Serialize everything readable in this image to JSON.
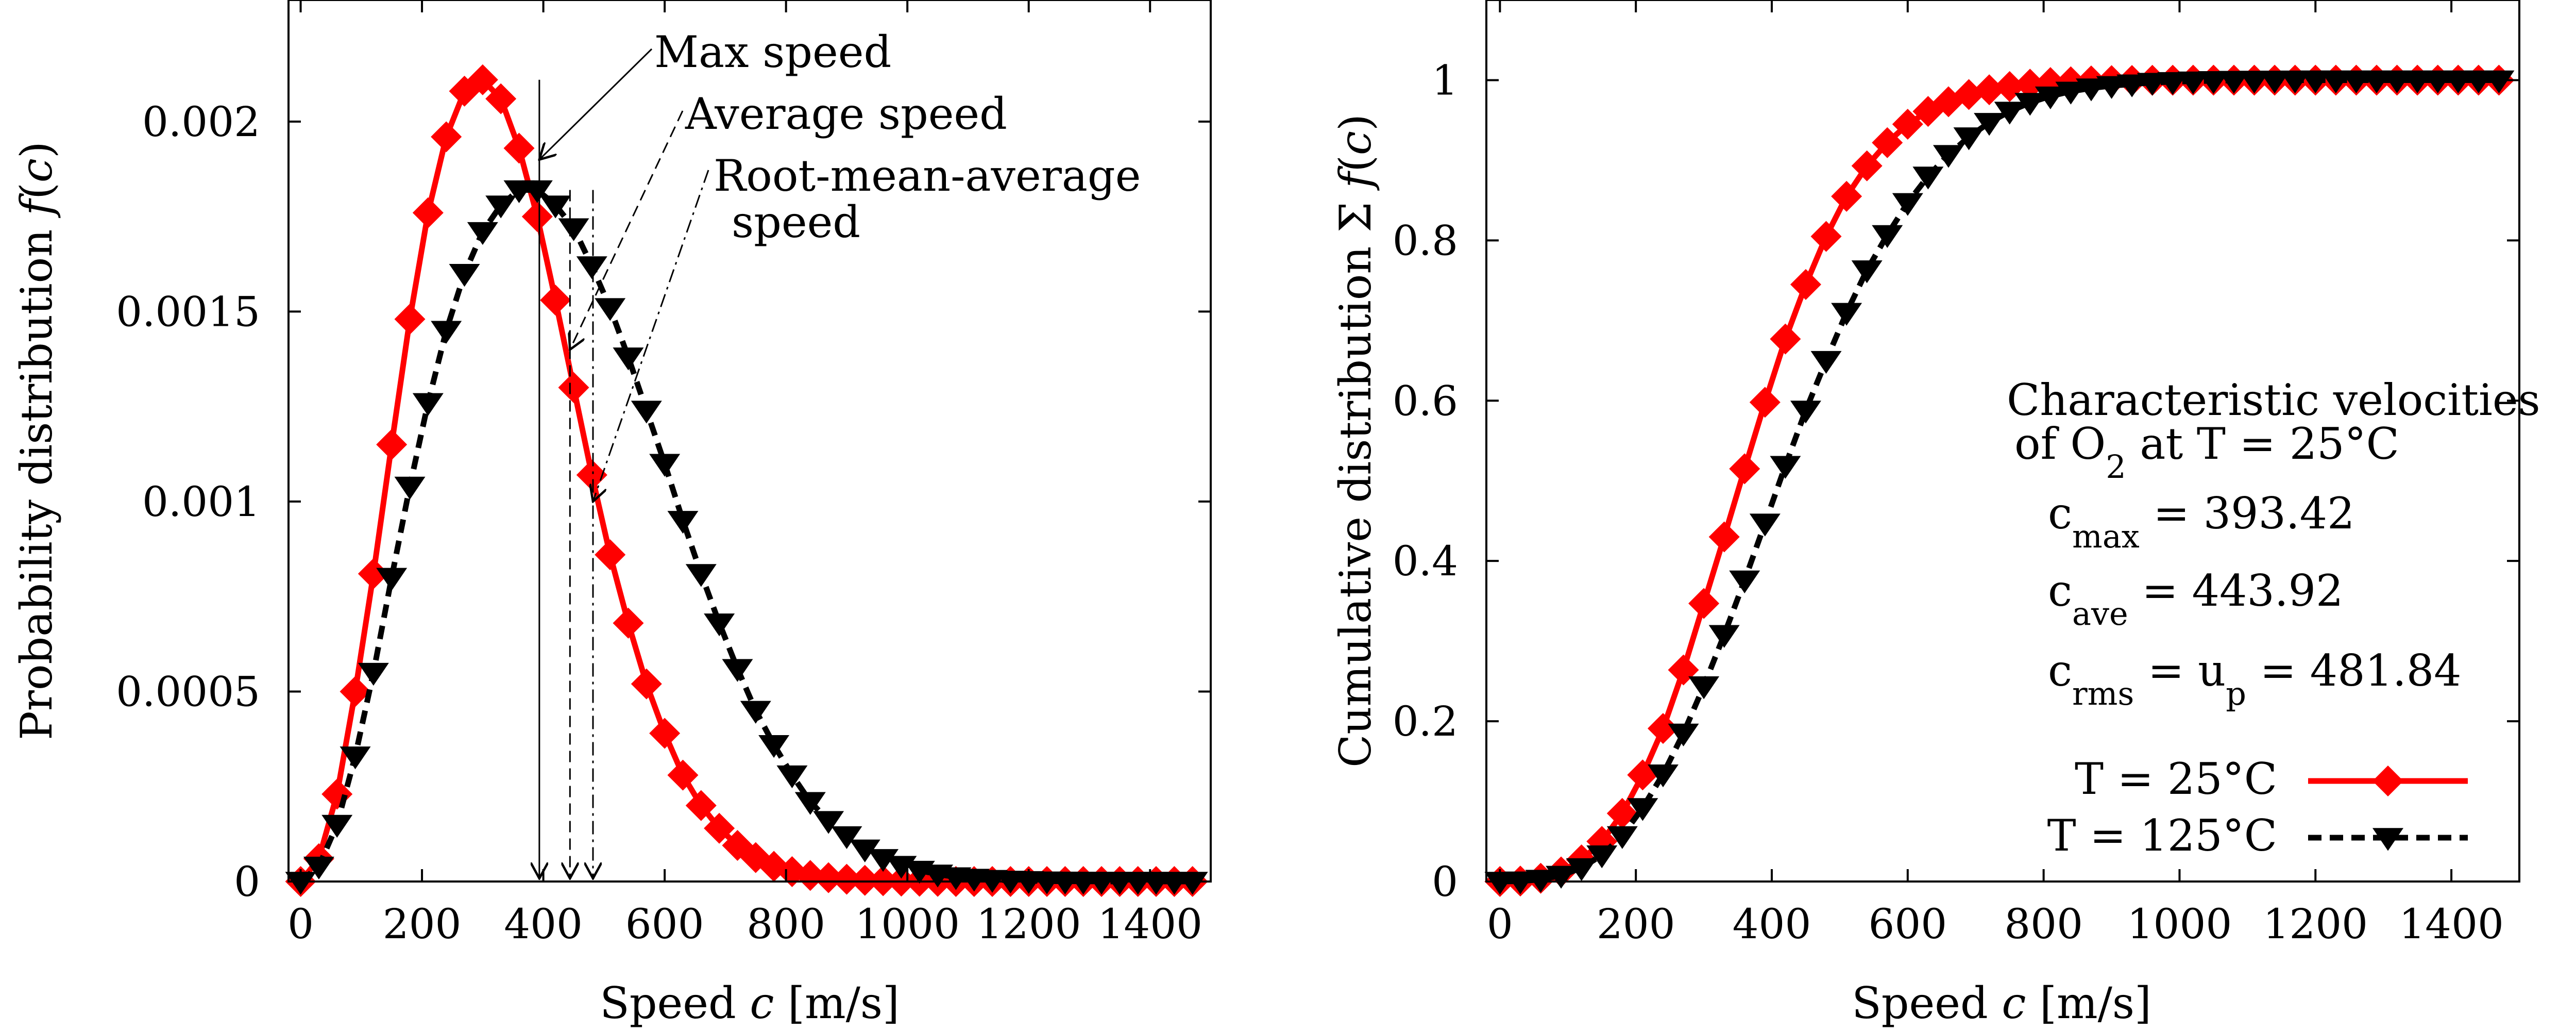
{
  "chart_data": [
    {
      "type": "line",
      "xlabel": "Speed",
      "xlabel_var": "c",
      "xlabel_unit": "[m/s]",
      "ylabel": "Probability distribution",
      "ylabel_func": "f",
      "ylabel_var": "c",
      "xlim": [
        -20,
        1500
      ],
      "ylim": [
        0,
        0.00232
      ],
      "xticks": [
        0,
        200,
        400,
        600,
        800,
        1000,
        1200,
        1400
      ],
      "xtick_labels": [
        "0",
        "200",
        "400",
        "600",
        "800",
        "1000",
        "1200",
        "1400"
      ],
      "yticks": [
        0,
        0.0005,
        0.001,
        0.0015,
        0.002
      ],
      "ytick_labels": [
        "0",
        "0.0005",
        "0.001",
        "0.0015",
        "0.002"
      ],
      "grid": false,
      "x": [
        0,
        30,
        60,
        90,
        120,
        150,
        180,
        210,
        240,
        270,
        300,
        330,
        360,
        390,
        420,
        450,
        480,
        510,
        540,
        570,
        600,
        630,
        660,
        690,
        720,
        750,
        780,
        810,
        840,
        870,
        900,
        930,
        960,
        990,
        1020,
        1050,
        1080,
        1110,
        1140,
        1170,
        1200,
        1230,
        1260,
        1290,
        1320,
        1350,
        1380,
        1410,
        1440,
        1470
      ],
      "series": [
        {
          "color": "#ff0000",
          "marker": "diamond",
          "line": "solid",
          "values": [
            0,
            6e-05,
            0.00023,
            0.0005,
            0.00081,
            0.00115,
            0.00148,
            0.00176,
            0.00196,
            0.00208,
            0.00211,
            0.00206,
            0.00193,
            0.00175,
            0.00153,
            0.0013,
            0.00107,
            0.00086,
            0.00068,
            0.00052,
            0.00039,
            0.00028,
            0.0002,
            0.00014,
            9.5e-05,
            6.3e-05,
            4e-05,
            2.6e-05,
            1.6e-05,
            1e-05,
            6e-06,
            3e-06,
            2e-06,
            1e-06,
            6e-07,
            3e-07,
            0,
            0,
            0,
            0,
            0,
            0,
            0,
            0,
            0,
            0,
            0,
            0,
            0,
            0
          ]
        },
        {
          "color": "#000000",
          "marker": "triangle-down",
          "line": "dashed",
          "values": [
            0,
            4e-05,
            0.00015,
            0.00033,
            0.00055,
            0.0008,
            0.00104,
            0.00126,
            0.00145,
            0.0016,
            0.00171,
            0.00178,
            0.00182,
            0.00182,
            0.00178,
            0.00172,
            0.00162,
            0.00151,
            0.00138,
            0.00124,
            0.0011,
            0.00095,
            0.00081,
            0.00068,
            0.00056,
            0.00045,
            0.00036,
            0.00028,
            0.00021,
            0.00016,
            0.00012,
            8.5e-05,
            6e-05,
            4.2e-05,
            2.9e-05,
            1.9e-05,
            1.2e-05,
            8e-06,
            5e-06,
            3e-06,
            2e-06,
            1e-06,
            6e-07,
            4e-07,
            2e-07,
            0,
            0,
            0,
            0,
            0
          ]
        }
      ],
      "markers_lines": [
        {
          "x": 393.42,
          "style": "solid"
        },
        {
          "x": 443.92,
          "style": "dashed"
        },
        {
          "x": 481.84,
          "style": "dashdot"
        }
      ],
      "annotations": [
        {
          "text": "Max speed",
          "points_to_x": 393.42,
          "points_to_y": 0.0019
        },
        {
          "text": "Average speed",
          "points_to_x": 443.92,
          "points_to_y": 0.0014
        },
        {
          "text_line1": "Root-mean-average",
          "text_line2": "speed",
          "points_to_x": 481.84,
          "points_to_y": 0.001
        }
      ]
    },
    {
      "type": "line",
      "xlabel": "Speed",
      "xlabel_var": "c",
      "xlabel_unit": "[m/s]",
      "ylabel": "Cumulative distribution",
      "ylabel_sym": "Σ",
      "ylabel_func": "f",
      "ylabel_var": "c",
      "xlim": [
        -20,
        1500
      ],
      "ylim": [
        0,
        1.1
      ],
      "xticks": [
        0,
        200,
        400,
        600,
        800,
        1000,
        1200,
        1400
      ],
      "xtick_labels": [
        "0",
        "200",
        "400",
        "600",
        "800",
        "1000",
        "1200",
        "1400"
      ],
      "yticks": [
        0,
        0.2,
        0.4,
        0.6,
        0.8,
        1
      ],
      "ytick_labels": [
        "0",
        "0.2",
        "0.4",
        "0.6",
        "0.8",
        "1"
      ],
      "grid": false,
      "legend_position": "bottom-right",
      "x": [
        0,
        30,
        60,
        90,
        120,
        150,
        180,
        210,
        240,
        270,
        300,
        330,
        360,
        390,
        420,
        450,
        480,
        510,
        540,
        570,
        600,
        630,
        660,
        690,
        720,
        750,
        780,
        810,
        840,
        870,
        900,
        930,
        960,
        990,
        1020,
        1050,
        1080,
        1110,
        1140,
        1170,
        1200,
        1230,
        1260,
        1290,
        1320,
        1350,
        1380,
        1410,
        1440,
        1470
      ],
      "series": [
        {
          "name": "T = 25°C",
          "color": "#ff0000",
          "marker": "diamond",
          "line": "solid",
          "values": [
            0,
            0.0006,
            0.004,
            0.012,
            0.027,
            0.05,
            0.085,
            0.133,
            0.191,
            0.264,
            0.347,
            0.43,
            0.515,
            0.598,
            0.677,
            0.745,
            0.805,
            0.855,
            0.893,
            0.922,
            0.945,
            0.961,
            0.973,
            0.982,
            0.988,
            0.992,
            0.995,
            0.997,
            0.998,
            0.999,
            0.9994,
            0.9996,
            0.9998,
            0.9999,
            1,
            1,
            1,
            1,
            1,
            1,
            1,
            1,
            1,
            1,
            1,
            1,
            1,
            1,
            1,
            1
          ]
        },
        {
          "name": "T = 125°C",
          "color": "#000000",
          "marker": "triangle-down",
          "line": "dashed",
          "values": [
            0,
            0.0004,
            0.0025,
            0.0075,
            0.017,
            0.033,
            0.057,
            0.092,
            0.134,
            0.185,
            0.244,
            0.308,
            0.376,
            0.447,
            0.519,
            0.588,
            0.65,
            0.71,
            0.763,
            0.807,
            0.847,
            0.88,
            0.907,
            0.929,
            0.947,
            0.961,
            0.972,
            0.98,
            0.986,
            0.99,
            0.993,
            0.995,
            0.997,
            0.998,
            0.9987,
            0.9992,
            0.9995,
            0.9997,
            0.9998,
            0.9999,
            1,
            1,
            1,
            1,
            1,
            1,
            1,
            1,
            1,
            1
          ]
        }
      ],
      "info_box": {
        "title_line1": "Characteristic velocities",
        "title_line2_prefix": "of O",
        "title_line2_sub": "2",
        "title_line2_suffix": " at T = 25°C",
        "cmax_label": "c",
        "cmax_sub": "max",
        "cmax_value": " = 393.42",
        "cave_label": "c",
        "cave_sub": "ave",
        "cave_value": " = 443.92",
        "crms_label": "c",
        "crms_sub": "rms",
        "crms_mid": " = u",
        "crms_sub2": "p",
        "crms_value": " = 481.84"
      }
    }
  ]
}
